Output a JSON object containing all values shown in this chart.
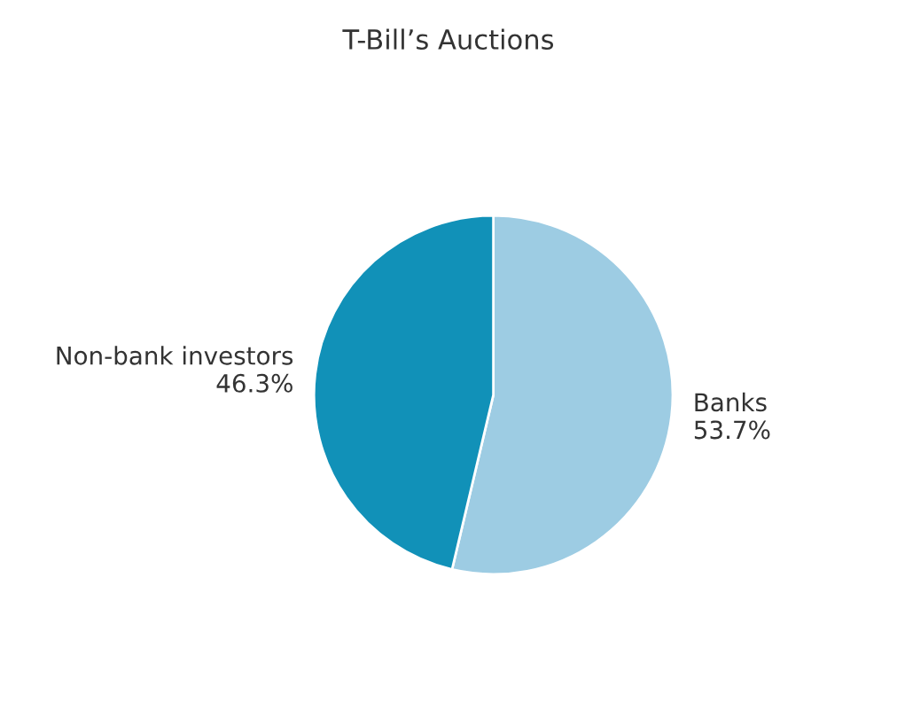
{
  "chart_data": {
    "type": "pie",
    "title": "T-Bill’s Auctions",
    "categories": [
      "Banks",
      "Non-bank investors"
    ],
    "values": [
      53.7,
      46.3
    ],
    "colors": [
      "#9dcce3",
      "#1191b8"
    ],
    "value_labels": [
      "53.7%",
      "46.3%"
    ],
    "legend": false
  }
}
